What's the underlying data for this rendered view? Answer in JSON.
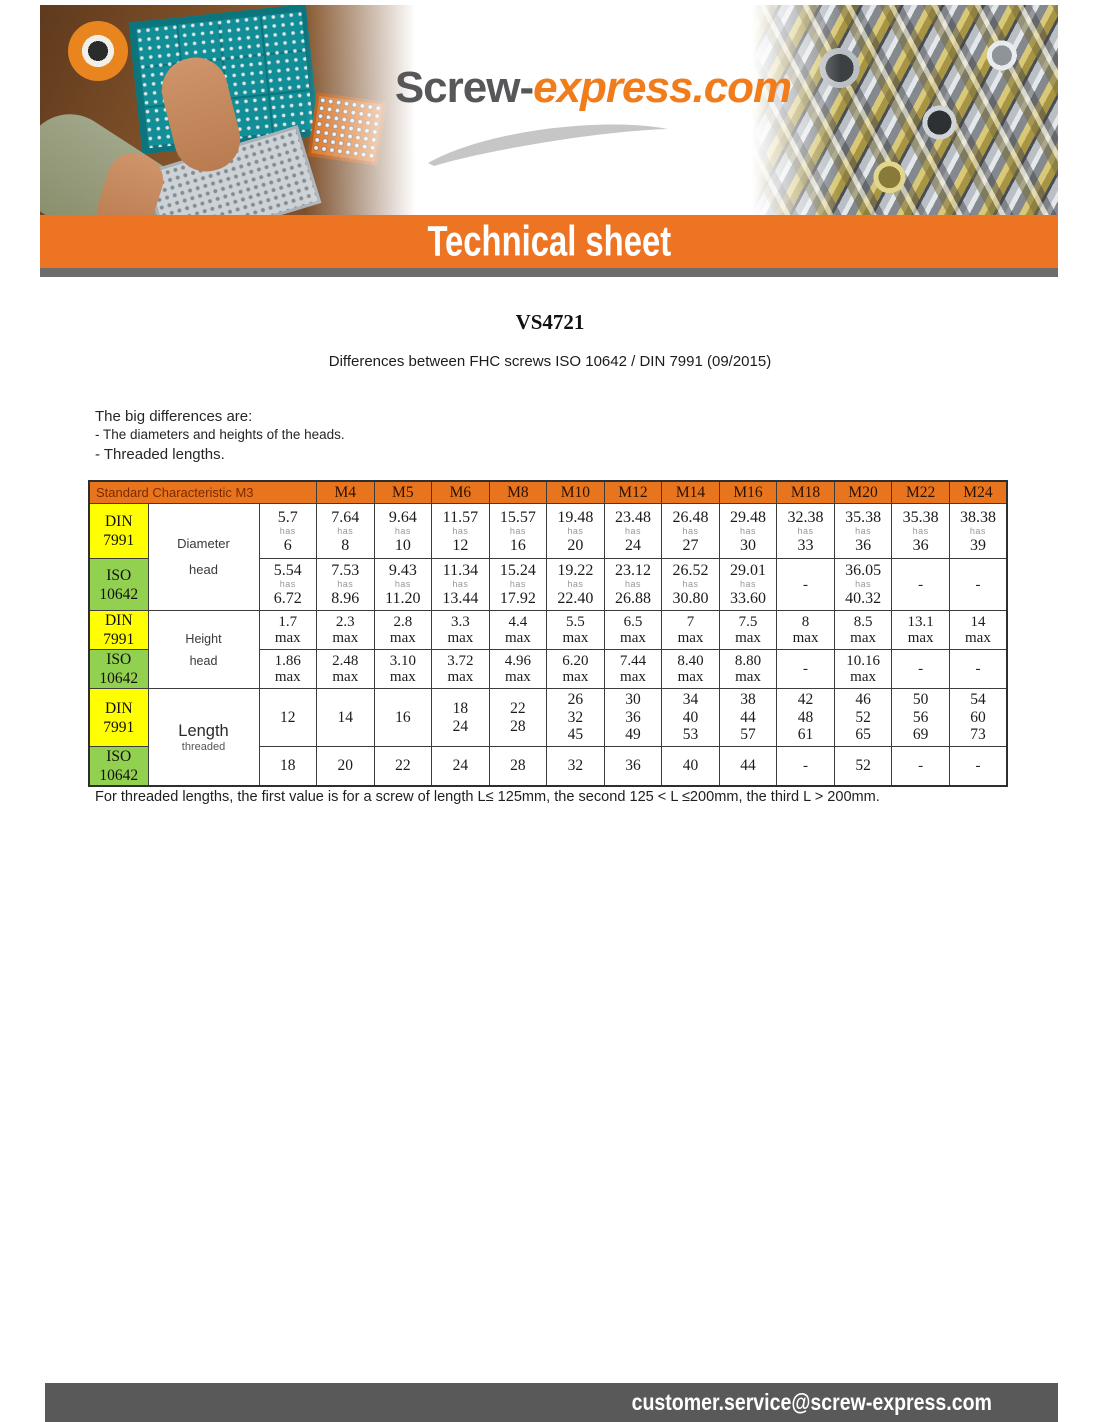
{
  "logo": {
    "part1": "Screw-",
    "part2": "express.com"
  },
  "banner_title": "Technical sheet",
  "doc": {
    "title": "VS4721",
    "subtitle": "Differences between FHC screws ISO 10642 / DIN 7991 (09/2015)",
    "intro_line1": "The big differences are:",
    "intro_line2": "- The diameters and heights of the heads.",
    "intro_line3": "- Threaded lengths.",
    "footnote": "For threaded lengths, the first value is for a screw of length L≤ 125mm, the second 125 < L ≤200mm, the third L > 200mm."
  },
  "footer": {
    "email": "customer.service@screw-express.com"
  },
  "colors": {
    "banner_orange": "#ed7423",
    "table_header_orange": "#e8751e",
    "din_yellow": "#ffff00",
    "iso_green": "#92d050",
    "footer_gray": "#595959",
    "logo_gray": "#57575a",
    "logo_orange": "#f07c1c"
  },
  "table": {
    "header_left": "Standard Characteristic M3",
    "size_headers": [
      "M4",
      "M5",
      "M6",
      "M8",
      "M10",
      "M12",
      "M14",
      "M16",
      "M18",
      "M20",
      "M22",
      "M24"
    ],
    "range_separator": "has",
    "max_label": "max",
    "dash": "-",
    "sections": [
      {
        "characteristic": [
          "Diameter",
          "head"
        ],
        "rows": [
          {
            "standard": [
              "DIN",
              "7991"
            ],
            "bg": "yellow",
            "type": "range",
            "cells": [
              [
                "5.7",
                "6"
              ],
              [
                "7.64",
                "8"
              ],
              [
                "9.64",
                "10"
              ],
              [
                "11.57",
                "12"
              ],
              [
                "15.57",
                "16"
              ],
              [
                "19.48",
                "20"
              ],
              [
                "23.48",
                "24"
              ],
              [
                "26.48",
                "27"
              ],
              [
                "29.48",
                "30"
              ],
              [
                "32.38",
                "33"
              ],
              [
                "35.38",
                "36"
              ],
              [
                "35.38",
                "36"
              ],
              [
                "38.38",
                "39"
              ]
            ]
          },
          {
            "standard": [
              "ISO",
              "10642"
            ],
            "bg": "green",
            "type": "range",
            "cells": [
              [
                "5.54",
                "6.72"
              ],
              [
                "7.53",
                "8.96"
              ],
              [
                "9.43",
                "11.20"
              ],
              [
                "11.34",
                "13.44"
              ],
              [
                "15.24",
                "17.92"
              ],
              [
                "19.22",
                "22.40"
              ],
              [
                "23.12",
                "26.88"
              ],
              [
                "26.52",
                "30.80"
              ],
              [
                "29.01",
                "33.60"
              ],
              "-",
              [
                "36.05",
                "40.32"
              ],
              "-",
              "-"
            ]
          }
        ]
      },
      {
        "characteristic": [
          "Height",
          "head"
        ],
        "rows": [
          {
            "standard": [
              "DIN",
              "7991"
            ],
            "bg": "yellow",
            "type": "max",
            "cells": [
              "1.7",
              "2.3",
              "2.8",
              "3.3",
              "4.4",
              "5.5",
              "6.5",
              "7",
              "7.5",
              "8",
              "8.5",
              "13.1",
              "14"
            ]
          },
          {
            "standard": [
              "ISO",
              "10642"
            ],
            "bg": "green",
            "type": "max",
            "cells": [
              "1.86",
              "2.48",
              "3.10",
              "3.72",
              "4.96",
              "6.20",
              "7.44",
              "8.40",
              "8.80",
              "-",
              "10.16",
              "-",
              "-"
            ]
          }
        ]
      },
      {
        "characteristic": [
          "Length",
          "threaded"
        ],
        "rows": [
          {
            "standard": [
              "DIN",
              "7991"
            ],
            "bg": "yellow",
            "type": "list",
            "cells": [
              [
                "12"
              ],
              [
                "14"
              ],
              [
                "16"
              ],
              [
                "18",
                "24"
              ],
              [
                "22",
                "28"
              ],
              [
                "26",
                "32",
                "45"
              ],
              [
                "30",
                "36",
                "49"
              ],
              [
                "34",
                "40",
                "53"
              ],
              [
                "38",
                "44",
                "57"
              ],
              [
                "42",
                "48",
                "61"
              ],
              [
                "46",
                "52",
                "65"
              ],
              [
                "50",
                "56",
                "69"
              ],
              [
                "54",
                "60",
                "73"
              ]
            ]
          },
          {
            "standard": [
              "ISO",
              "10642"
            ],
            "bg": "green",
            "type": "list",
            "cells": [
              [
                "18"
              ],
              [
                "20"
              ],
              [
                "22"
              ],
              [
                "24"
              ],
              [
                "28"
              ],
              [
                "32"
              ],
              [
                "36"
              ],
              [
                "40"
              ],
              [
                "44"
              ],
              "-",
              [
                "52"
              ],
              "-",
              "-"
            ]
          }
        ]
      }
    ]
  }
}
